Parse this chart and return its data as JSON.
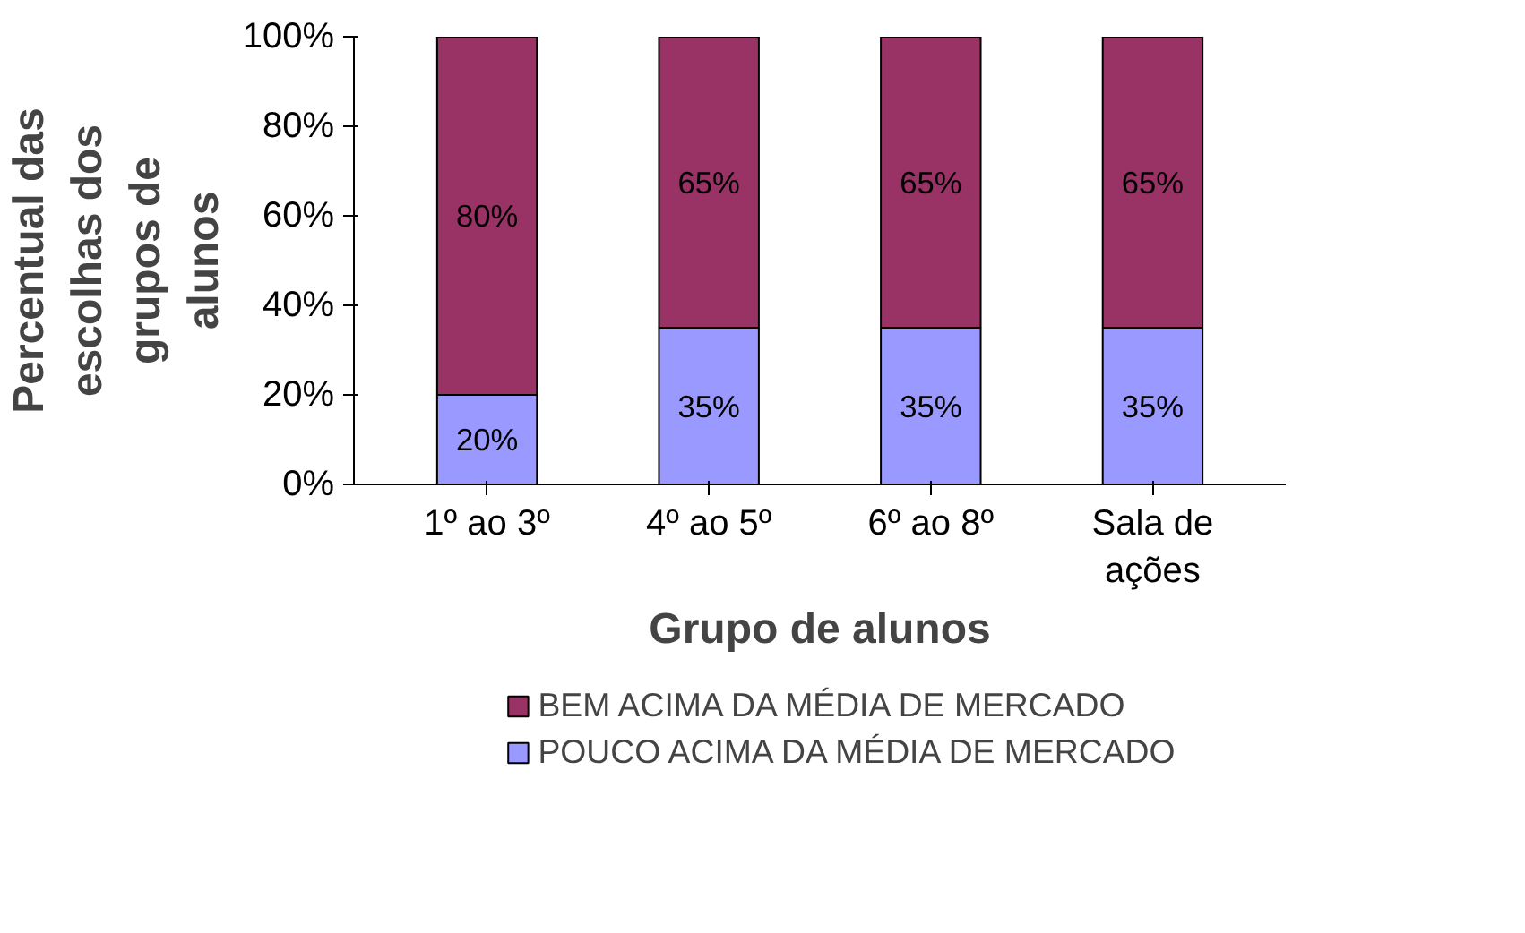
{
  "chart_data": {
    "type": "bar",
    "stacked": true,
    "xlabel": "Grupo de alunos",
    "ylabel": "Percentual das escolhas dos grupos de alunos",
    "categories": [
      "1º ao 3º",
      "4º ao 5º",
      "6º ao 8º",
      "Sala de ações"
    ],
    "series": [
      {
        "name": "POUCO ACIMA DA MÉDIA DE MERCADO",
        "color": "#9999ff",
        "values": [
          20,
          35,
          35,
          35
        ],
        "value_labels": [
          "20%",
          "35%",
          "35%",
          "35%"
        ]
      },
      {
        "name": "BEM ACIMA DA MÉDIA DE MERCADO",
        "color": "#993366",
        "values": [
          80,
          65,
          65,
          65
        ],
        "value_labels": [
          "80%",
          "65%",
          "65%",
          "65%"
        ]
      }
    ],
    "ylim": [
      0,
      100
    ],
    "yticks": [
      {
        "value": 0,
        "label": "0%"
      },
      {
        "value": 20,
        "label": "20%"
      },
      {
        "value": 40,
        "label": "40%"
      },
      {
        "value": 60,
        "label": "60%"
      },
      {
        "value": 80,
        "label": "80%"
      },
      {
        "value": 100,
        "label": "100%"
      }
    ],
    "legend": "bottom"
  }
}
